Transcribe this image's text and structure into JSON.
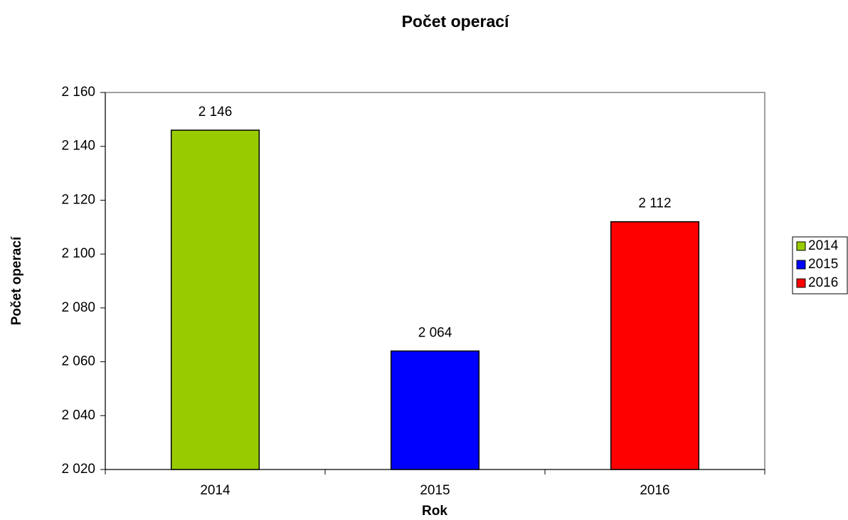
{
  "chart_data": {
    "type": "bar",
    "title": "Počet operací",
    "x_label": "Rok",
    "y_label": "Počet operací",
    "categories": [
      "2014",
      "2015",
      "2016"
    ],
    "values": [
      2146,
      2064,
      2112
    ],
    "value_labels": [
      "2 146",
      "2 064",
      "2 112"
    ],
    "colors": [
      "#99cc00",
      "#0000ff",
      "#ff0000"
    ],
    "ylim": [
      2020,
      2160
    ],
    "yticks": [
      {
        "value": 2020,
        "label": "2 020"
      },
      {
        "value": 2040,
        "label": "2 040"
      },
      {
        "value": 2060,
        "label": "2 060"
      },
      {
        "value": 2080,
        "label": "2 080"
      },
      {
        "value": 2100,
        "label": "2 100"
      },
      {
        "value": 2120,
        "label": "2 120"
      },
      {
        "value": 2140,
        "label": "2 140"
      },
      {
        "value": 2160,
        "label": "2 160"
      }
    ],
    "grid": false,
    "legend": "right"
  }
}
